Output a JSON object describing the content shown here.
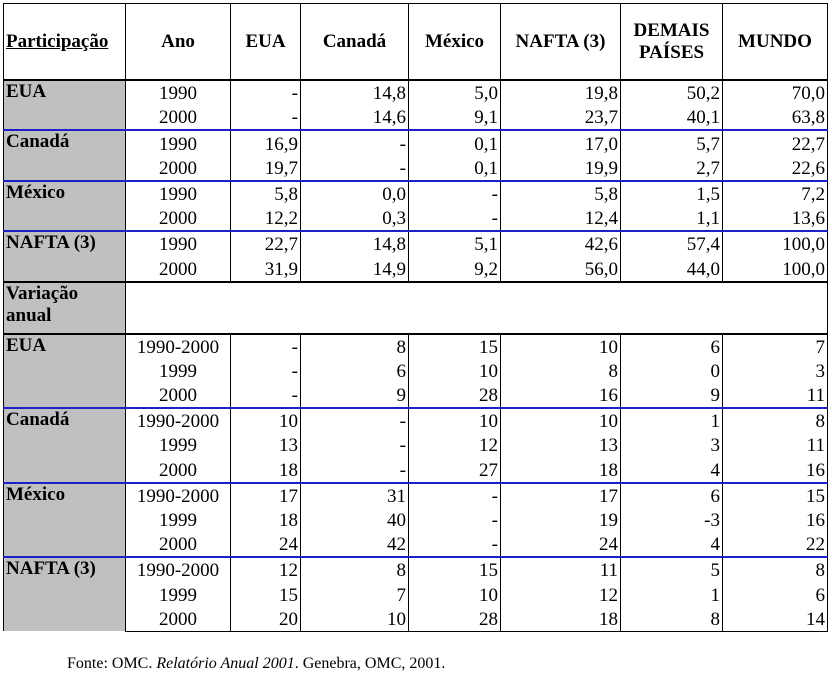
{
  "header": {
    "columns": [
      "Participação",
      "Ano",
      "EUA",
      "Canadá",
      "México",
      "NAFTA (3)",
      "DEMAIS PAÍSES",
      "MUNDO"
    ]
  },
  "participation": {
    "groups": [
      {
        "label": "EUA",
        "rows": [
          [
            "1990",
            "-",
            "14,8",
            "5,0",
            "19,8",
            "50,2",
            "70,0"
          ],
          [
            "2000",
            "-",
            "14,6",
            "9,1",
            "23,7",
            "40,1",
            "63,8"
          ]
        ]
      },
      {
        "label": "Canadá",
        "rows": [
          [
            "1990",
            "16,9",
            "-",
            "0,1",
            "17,0",
            "5,7",
            "22,7"
          ],
          [
            "2000",
            "19,7",
            "-",
            "0,1",
            "19,9",
            "2,7",
            "22,6"
          ]
        ]
      },
      {
        "label": "México",
        "rows": [
          [
            "1990",
            "5,8",
            "0,0",
            "-",
            "5,8",
            "1,5",
            "7,2"
          ],
          [
            "2000",
            "12,2",
            "0,3",
            "-",
            "12,4",
            "1,1",
            "13,6"
          ]
        ]
      },
      {
        "label": "NAFTA (3)",
        "rows": [
          [
            "1990",
            "22,7",
            "14,8",
            "5,1",
            "42,6",
            "57,4",
            "100,0"
          ],
          [
            "2000",
            "31,9",
            "14,9",
            "9,2",
            "56,0",
            "44,0",
            "100,0"
          ]
        ]
      }
    ]
  },
  "variation": {
    "label": "Variação anual",
    "groups": [
      {
        "label": "EUA",
        "rows": [
          [
            "1990-2000",
            "-",
            "8",
            "15",
            "10",
            "6",
            "7"
          ],
          [
            "1999",
            "-",
            "6",
            "10",
            "8",
            "0",
            "3"
          ],
          [
            "2000",
            "-",
            "9",
            "28",
            "16",
            "9",
            "11"
          ]
        ]
      },
      {
        "label": "Canadá",
        "rows": [
          [
            "1990-2000",
            "10",
            "-",
            "10",
            "10",
            "1",
            "8"
          ],
          [
            "1999",
            "13",
            "-",
            "12",
            "13",
            "3",
            "11"
          ],
          [
            "2000",
            "18",
            "-",
            "27",
            "18",
            "4",
            "16"
          ]
        ]
      },
      {
        "label": "México",
        "rows": [
          [
            "1990-2000",
            "17",
            "31",
            "-",
            "17",
            "6",
            "15"
          ],
          [
            "1999",
            "18",
            "40",
            "-",
            "19",
            "-3",
            "16"
          ],
          [
            "2000",
            "24",
            "42",
            "-",
            "24",
            "4",
            "22"
          ]
        ]
      },
      {
        "label": "NAFTA (3)",
        "rows": [
          [
            "1990-2000",
            "12",
            "8",
            "15",
            "11",
            "5",
            "8"
          ],
          [
            "1999",
            "15",
            "7",
            "10",
            "12",
            "1",
            "6"
          ],
          [
            "2000",
            "20",
            "10",
            "28",
            "18",
            "8",
            "14"
          ]
        ]
      }
    ]
  },
  "footer": {
    "prefix": "Fonte: OMC.",
    "title": "Relatório Anual 2001",
    "suffix": ". Genebra, OMC, 2001."
  }
}
